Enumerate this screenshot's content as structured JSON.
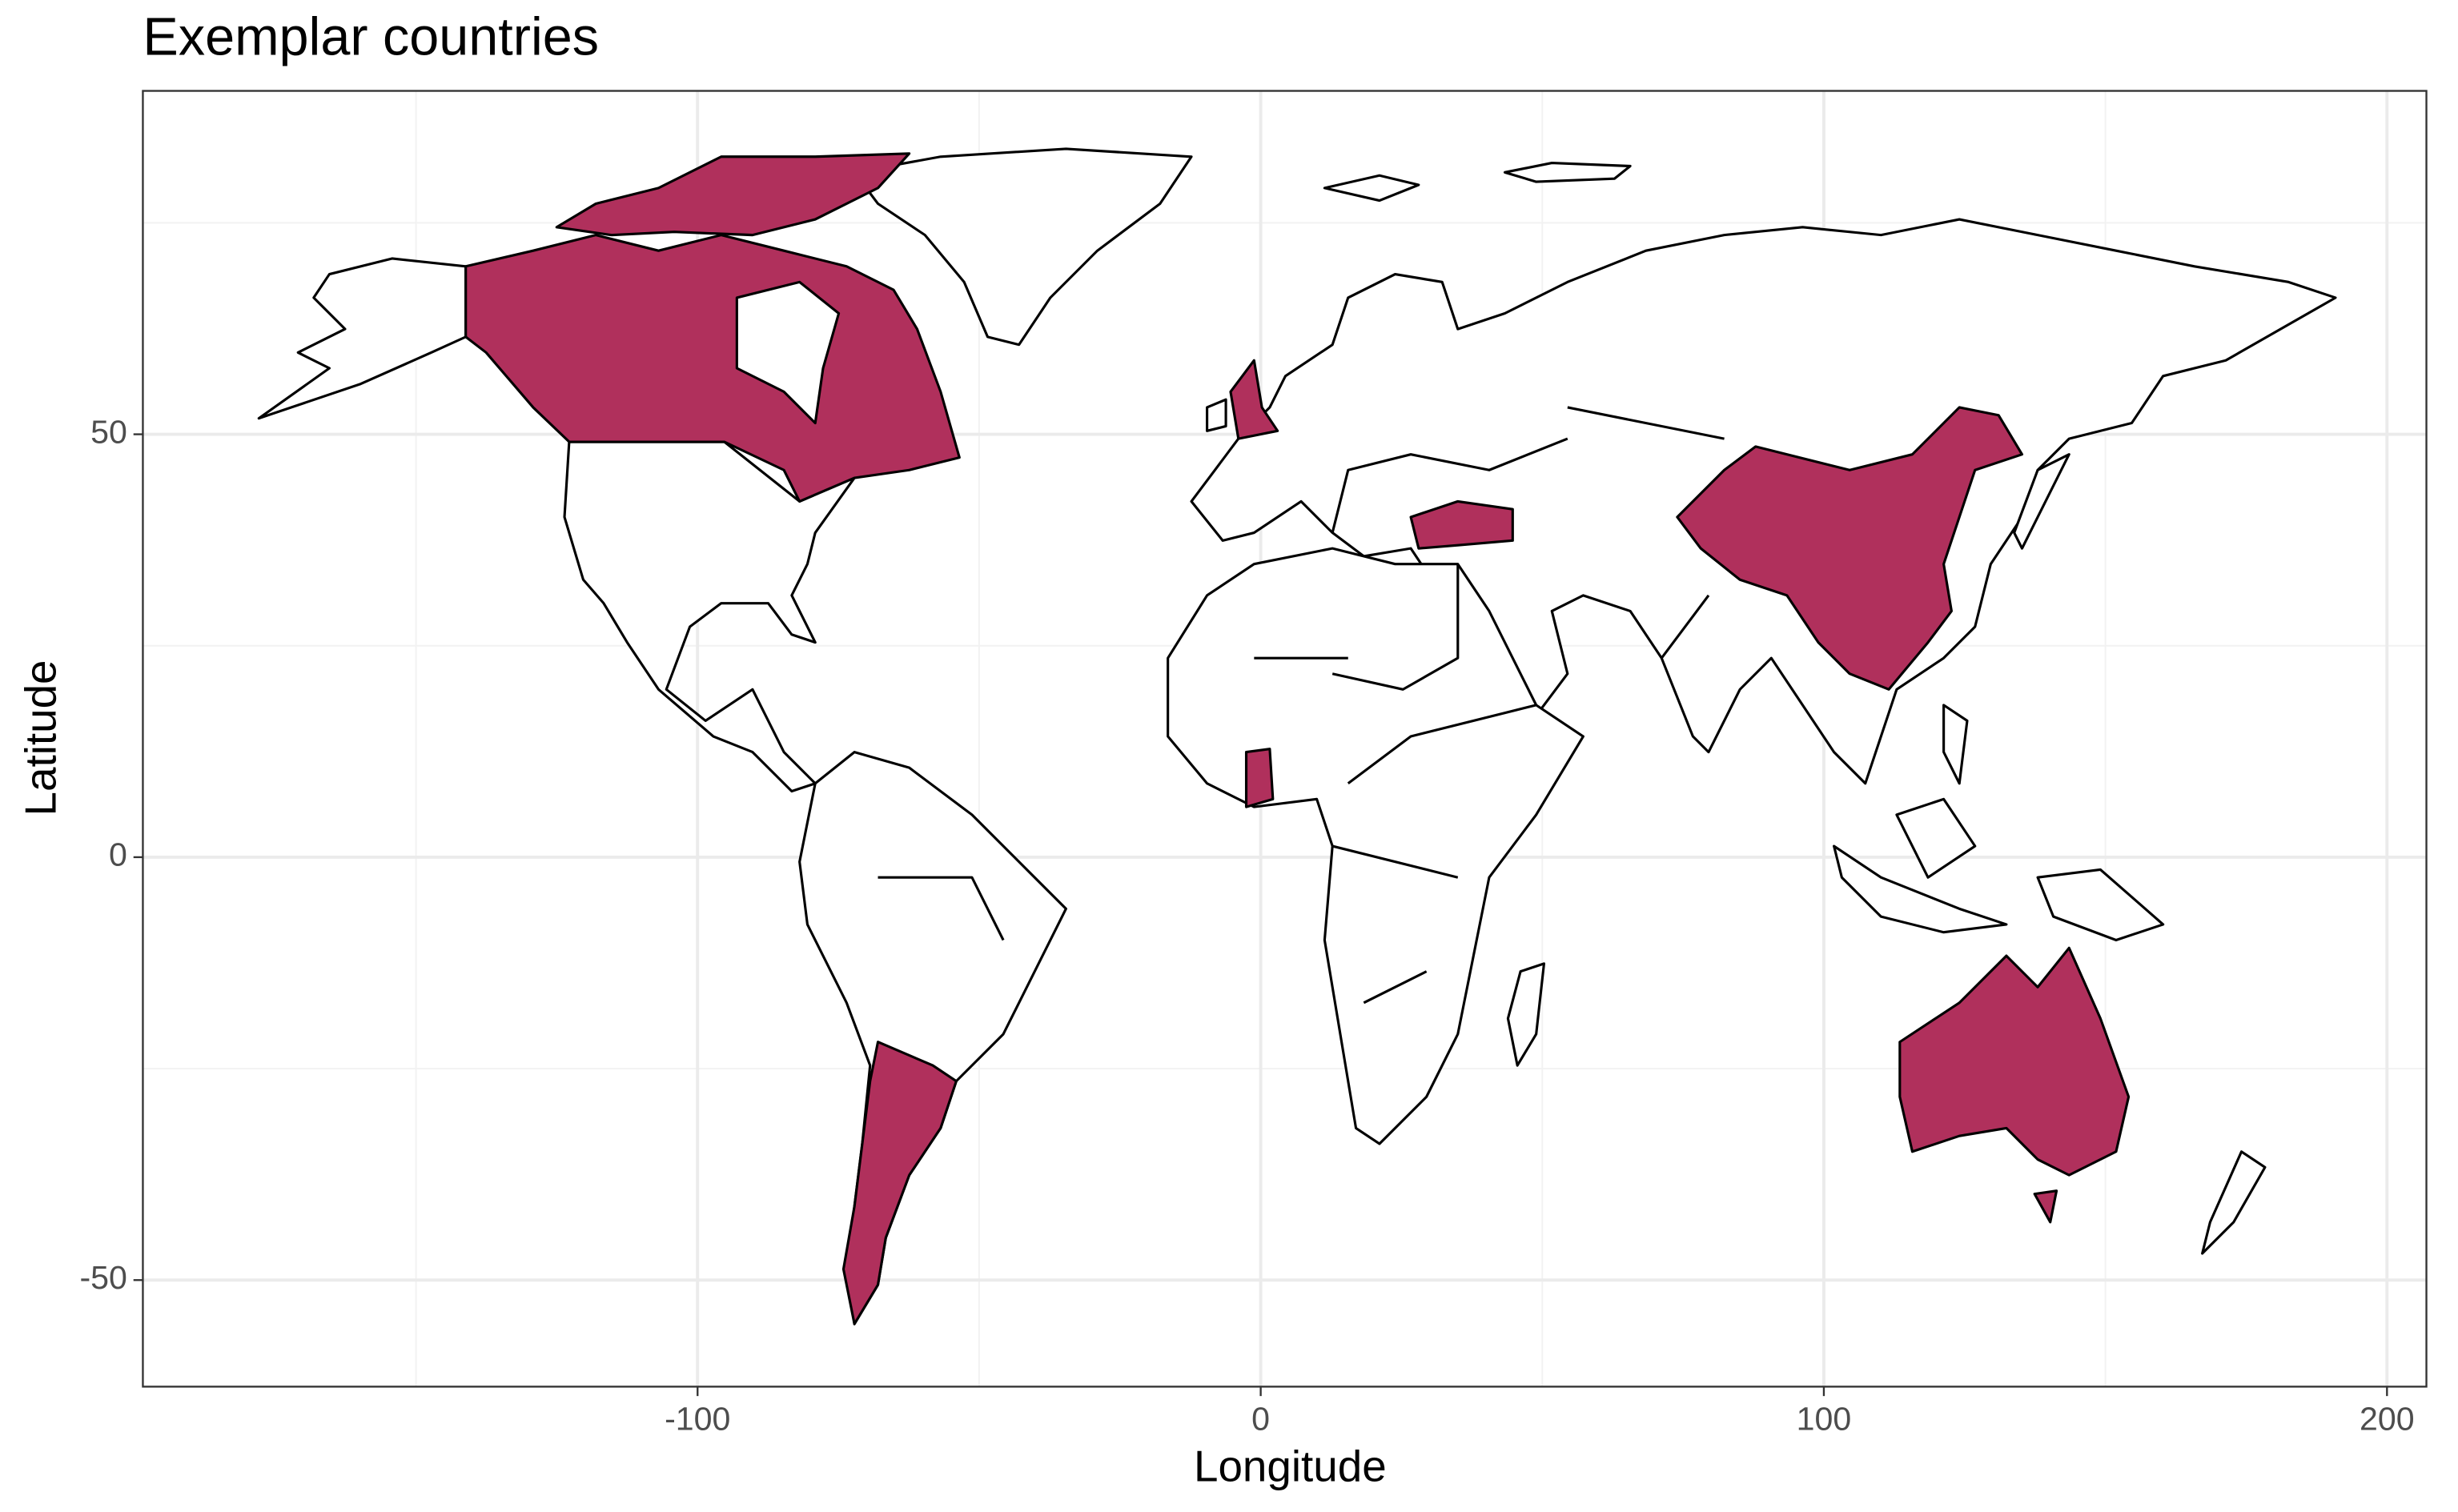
{
  "chart_data": {
    "type": "map",
    "title": "Exemplar countries",
    "x_label": "Longitude",
    "y_label": "Latitude",
    "xlim": [
      -198.5,
      207
    ],
    "ylim": [
      -62.6,
      90.6
    ],
    "xticks": [
      -100,
      0,
      100,
      200
    ],
    "yticks": [
      -50,
      0,
      50
    ],
    "x_minor_grid": [
      -150,
      -50,
      50,
      150
    ],
    "y_minor_grid": [
      -25,
      25,
      75
    ],
    "grid": true,
    "highlight_color": "#b0305c",
    "land_color": "#ffffff",
    "border_color": "#000000"
  }
}
